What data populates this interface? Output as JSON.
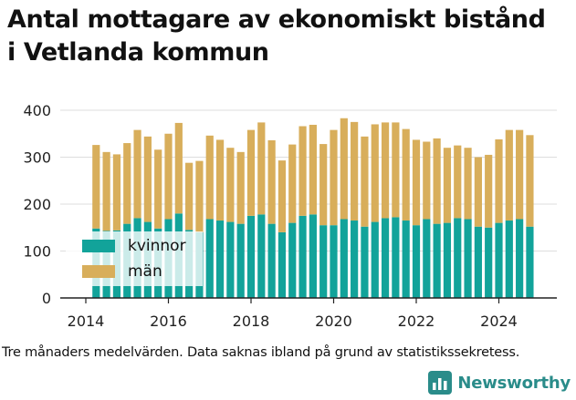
{
  "title_line1": "Antal mottagare av ekonomiskt bistånd",
  "title_line2": "i Vetlanda kommun",
  "footnote": "Tre månaders medelvärden. Data saknas ibland på grund av statistikssekretess.",
  "brand": {
    "name": "Newsworthy",
    "icon": "newsworthy-logo-icon"
  },
  "colors": {
    "kvinnor": "#12a39a",
    "man": "#d8ae5b",
    "grid": "#dddddd",
    "axis": "#222222"
  },
  "chart_data": {
    "type": "bar",
    "stacked": true,
    "x_start": 2014.25,
    "x_step": 0.25,
    "xlim": [
      2013.8,
      2025.4
    ],
    "xticks": [
      2014,
      2016,
      2018,
      2020,
      2022,
      2024
    ],
    "xtick_labels": [
      "2014",
      "2016",
      "2018",
      "2020",
      "2022",
      "2024"
    ],
    "ylim": [
      0,
      420
    ],
    "yticks": [
      0,
      100,
      200,
      300,
      400
    ],
    "ytick_labels": [
      "0",
      "100",
      "200",
      "300",
      "400"
    ],
    "grid": true,
    "legend_position": "bottom-left",
    "series": [
      {
        "name": "kvinnor",
        "values": [
          148,
          143,
          144,
          158,
          170,
          162,
          148,
          168,
          180,
          145,
          140,
          168,
          165,
          162,
          158,
          175,
          178,
          158,
          140,
          160,
          175,
          178,
          155,
          155,
          168,
          165,
          152,
          162,
          170,
          172,
          165,
          155,
          168,
          158,
          160,
          170,
          168,
          152,
          150,
          160,
          165,
          168,
          152
        ]
      },
      {
        "name": "män",
        "values": [
          178,
          168,
          162,
          172,
          188,
          182,
          168,
          182,
          193,
          143,
          152,
          178,
          172,
          158,
          153,
          183,
          196,
          178,
          153,
          167,
          191,
          191,
          173,
          203,
          215,
          210,
          192,
          208,
          204,
          202,
          195,
          182,
          165,
          182,
          160,
          155,
          152,
          148,
          155,
          178,
          193,
          190,
          195
        ]
      }
    ]
  }
}
